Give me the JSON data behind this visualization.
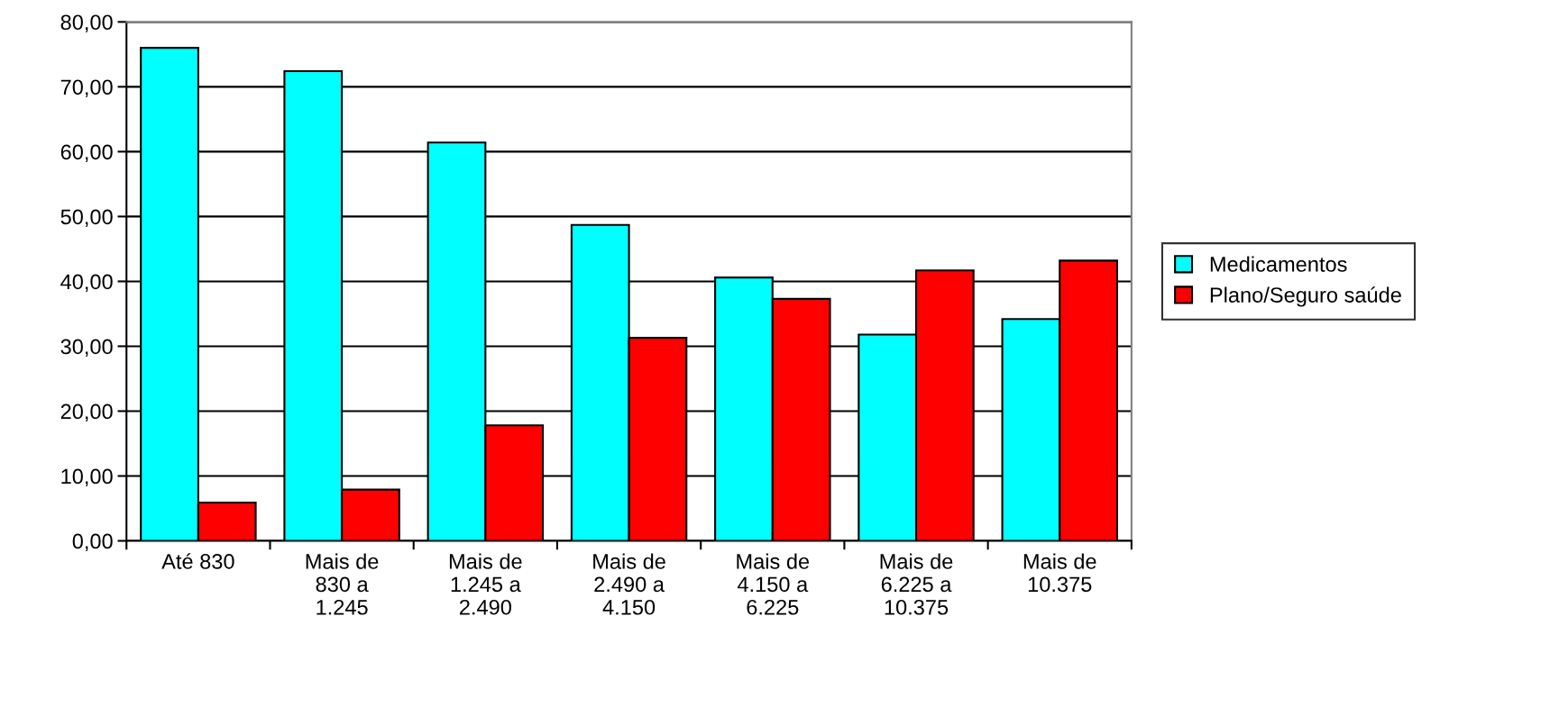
{
  "chart_data": {
    "type": "bar",
    "categories": [
      "Até 830",
      "Mais de\n830 a\n1.245",
      "Mais de\n1.245 a\n2.490",
      "Mais de\n2.490 a\n4.150",
      "Mais de\n4.150 a\n6.225",
      "Mais de\n6.225 a\n10.375",
      "Mais de\n10.375"
    ],
    "series": [
      {
        "name": "Medicamentos",
        "color": "#00ffff",
        "values": [
          76.0,
          72.4,
          61.4,
          48.7,
          40.6,
          31.8,
          34.2
        ]
      },
      {
        "name": "Plano/Seguro saúde",
        "color": "#ff0000",
        "values": [
          5.9,
          7.9,
          17.8,
          31.3,
          37.3,
          41.7,
          43.2
        ]
      }
    ],
    "ylim": [
      0,
      80
    ],
    "yticks": [
      {
        "value": 0,
        "label": "0,00"
      },
      {
        "value": 10,
        "label": "10,00"
      },
      {
        "value": 20,
        "label": "20,00"
      },
      {
        "value": 30,
        "label": "30,00"
      },
      {
        "value": 40,
        "label": "40,00"
      },
      {
        "value": 50,
        "label": "50,00"
      },
      {
        "value": 60,
        "label": "60,00"
      },
      {
        "value": 70,
        "label": "70,00"
      },
      {
        "value": 80,
        "label": "80,00"
      }
    ],
    "grid": "y",
    "legend": "right"
  }
}
